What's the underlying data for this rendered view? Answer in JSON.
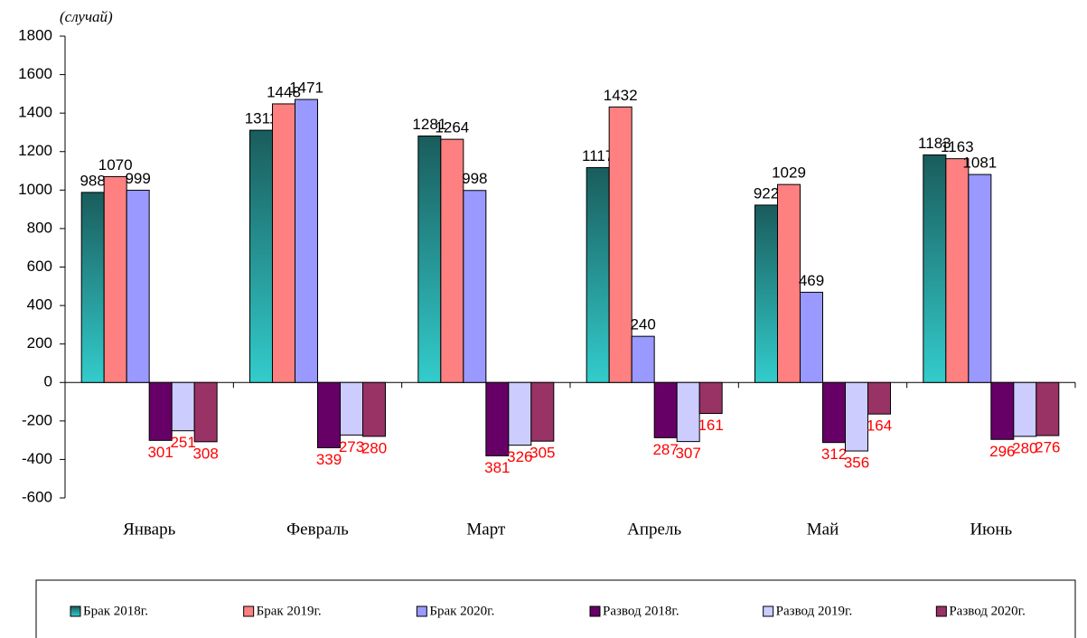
{
  "chart_data": {
    "type": "bar",
    "y_axis_label": "(случай)",
    "categories": [
      "Январь",
      "Февраль",
      "Март",
      "Апрель",
      "Май",
      "Июнь"
    ],
    "series": [
      {
        "name": "Брак 2018г.",
        "color": "#33cccc",
        "label_color": "#000000",
        "values": [
          988,
          1311,
          1281,
          1117,
          922,
          1183
        ]
      },
      {
        "name": "Брак 2019г.",
        "color": "#ff8080",
        "label_color": "#000000",
        "values": [
          1070,
          1448,
          1264,
          1432,
          1029,
          1163
        ]
      },
      {
        "name": "Брак 2020г.",
        "color": "#9999ff",
        "label_color": "#000000",
        "values": [
          999,
          1471,
          998,
          240,
          469,
          1081
        ]
      },
      {
        "name": "Развод 2018г.",
        "color": "#660066",
        "label_color": "#ff0000",
        "values": [
          -301,
          -339,
          -381,
          -287,
          -312,
          -296
        ],
        "value_labels": [
          "301",
          "339",
          "381",
          "287",
          "312",
          "296"
        ]
      },
      {
        "name": "Развод 2019г.",
        "color": "#ccccff",
        "label_color": "#ff0000",
        "values": [
          -251,
          -273,
          -326,
          -307,
          -356,
          -280
        ],
        "value_labels": [
          "251",
          "273",
          "326",
          "307",
          "356",
          "280"
        ]
      },
      {
        "name": "Развод 2020г.",
        "color": "#993366",
        "label_color": "#ff0000",
        "values": [
          -308,
          -280,
          -305,
          -161,
          -164,
          -276
        ],
        "value_labels": [
          "308",
          "280",
          "305",
          "161",
          "164",
          "276"
        ]
      }
    ],
    "ylim": [
      -600,
      1800
    ],
    "yticks": [
      -600,
      -400,
      -200,
      0,
      200,
      400,
      600,
      800,
      1000,
      1200,
      1400,
      1600,
      1800
    ],
    "grid": false,
    "legend": "bottom"
  }
}
